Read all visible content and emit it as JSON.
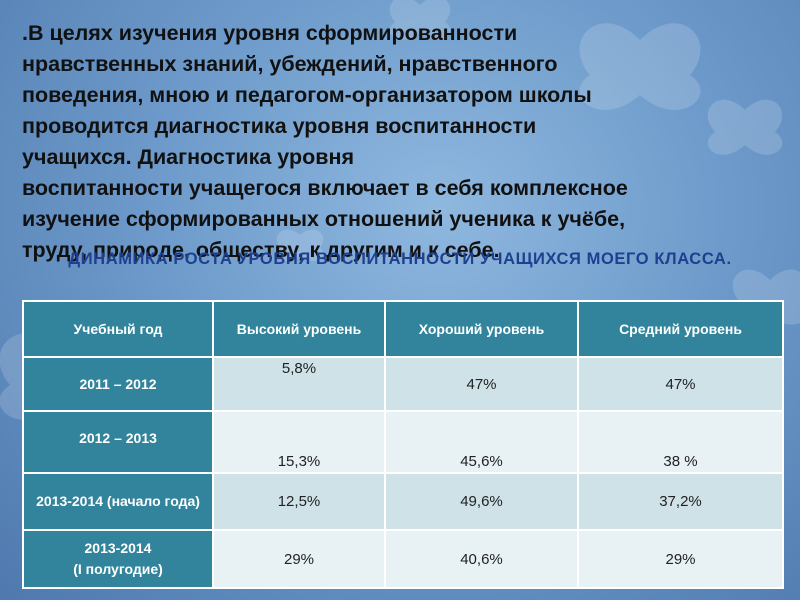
{
  "intro": ".В целях изучения уровня сформированности\nнравственных знаний, убеждений, нравственного\nповедения, мною и педагогом-организатором школы\nпроводится диагностика уровня воспитанности\nучащихся. Диагностика уровня\nвоспитанности учащегося включает в себя комплексное\nизучение сформированных отношений ученика к учёбе,\nтруду, природе, обществу, к другим и к себе.",
  "table_title": "Динамика роста уровня воспитанности учащихся моего класса.",
  "table": {
    "headers": [
      "Учебный год",
      "Высокий уровень",
      "Хороший уровень",
      "Средний уровень"
    ],
    "rows": [
      {
        "year": "2011 – 2012",
        "high": "5,8%",
        "good": "47%",
        "mid": "47%"
      },
      {
        "year": "2012 – 2013",
        "high": "15,3%",
        "good": "45,6%",
        "mid": "38 %"
      },
      {
        "year": "2013-2014 (начало года)",
        "high": "12,5%",
        "good": "49,6%",
        "mid": "37,2%"
      },
      {
        "year": "2013-2014\n(I полугодие)",
        "high": "29%",
        "good": "40,6%",
        "mid": "29%"
      }
    ]
  },
  "colors": {
    "header_bg": "#31849b",
    "title": "#1f3f8f",
    "cell_light": "#e8f1f4",
    "cell_dark": "#cfe2e8"
  }
}
